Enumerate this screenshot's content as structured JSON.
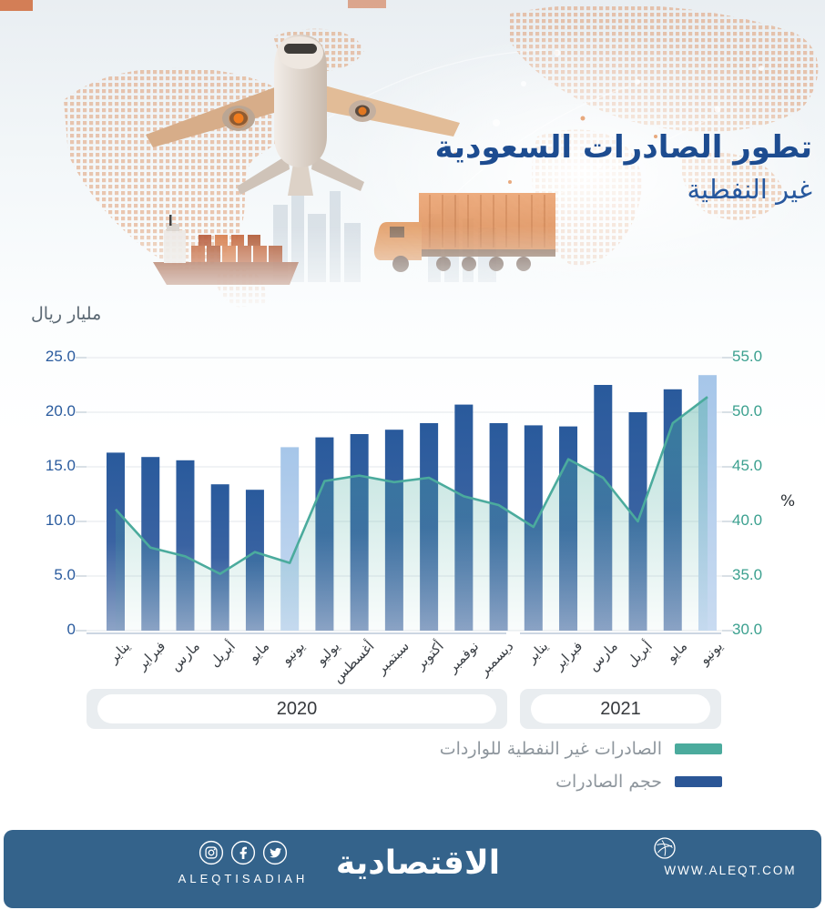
{
  "header": {
    "title_line1": "تطور الصادرات السعودية",
    "title_line2": "غير النفطية"
  },
  "chart_data": {
    "type": "bar",
    "categories": [
      "يناير",
      "فبراير",
      "مارس",
      "أبريل",
      "مايو",
      "يونيو",
      "يوليو",
      "أغسطس",
      "سبتمبر",
      "أكتوبر",
      "نوفمبر",
      "ديسمبر",
      "يناير",
      "فبراير",
      "مارس",
      "أبريل",
      "مايو",
      "يونيو"
    ],
    "groups": [
      {
        "label": "2020",
        "span": 12
      },
      {
        "label": "2021",
        "span": 6
      }
    ],
    "series": [
      {
        "name": "حجم الصادرات",
        "type": "bar",
        "axis": "left",
        "values": [
          16.3,
          15.9,
          15.6,
          13.4,
          12.9,
          16.8,
          17.7,
          18.0,
          18.4,
          19.0,
          20.7,
          19.0,
          18.8,
          18.7,
          22.5,
          20.0,
          22.1,
          23.4
        ],
        "color": "#2b5696",
        "highlight_color": "#a6c6e9",
        "highlight_indices": [
          5,
          17
        ]
      },
      {
        "name": "الصادرات غير النفطية للواردات",
        "type": "line",
        "axis": "right",
        "values": [
          41.1,
          37.6,
          36.8,
          35.2,
          37.2,
          36.2,
          43.7,
          44.2,
          43.6,
          44.0,
          42.3,
          41.5,
          39.5,
          45.7,
          44.0,
          40.0,
          49.0,
          51.4
        ],
        "color": "#4bab9d"
      }
    ],
    "left_axis": {
      "label": "مليار ريال",
      "min": 0,
      "max": 25,
      "ticks": [
        "25.0",
        "20.0",
        "15.0",
        "10.0",
        "5.0",
        "0"
      ]
    },
    "right_axis": {
      "label": "%",
      "min": 30,
      "max": 55,
      "ticks": [
        "55.0",
        "50.0",
        "45.0",
        "40.0",
        "35.0",
        "30.0"
      ]
    },
    "grid": true,
    "legend_position": "bottom-right"
  },
  "footer": {
    "handle": "ALEQTISADIAH",
    "logo": "الاقتصادية",
    "website": "WWW.ALEQT.COM",
    "background": "#34638b"
  }
}
